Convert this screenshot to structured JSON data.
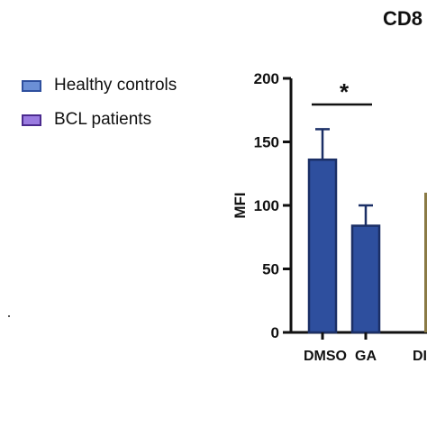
{
  "chart_data": {
    "type": "bar",
    "title": "CD8",
    "ylabel": "MFI",
    "xlabel": "",
    "ylim": [
      0,
      200
    ],
    "yticks": [
      0,
      50,
      100,
      150,
      200
    ],
    "categories": [
      "DMSO",
      "GA"
    ],
    "series": [
      {
        "name": "Healthy controls",
        "color": "#2e4f9e",
        "values": [
          136,
          84
        ],
        "errors": [
          24,
          16
        ]
      }
    ],
    "partial_category_label": "DI",
    "partial_bar": {
      "value": 110,
      "color": "#8a7a45"
    },
    "significance": {
      "label": "*",
      "between": [
        "DMSO",
        "GA"
      ]
    },
    "legend": {
      "position": "top-left",
      "items": [
        {
          "label": "Healthy controls",
          "fill": "#6b8fd6",
          "border": "#2e4f9e"
        },
        {
          "label": "BCL patients",
          "fill": "#9a7be0",
          "border": "#4b2a8e"
        }
      ]
    }
  }
}
